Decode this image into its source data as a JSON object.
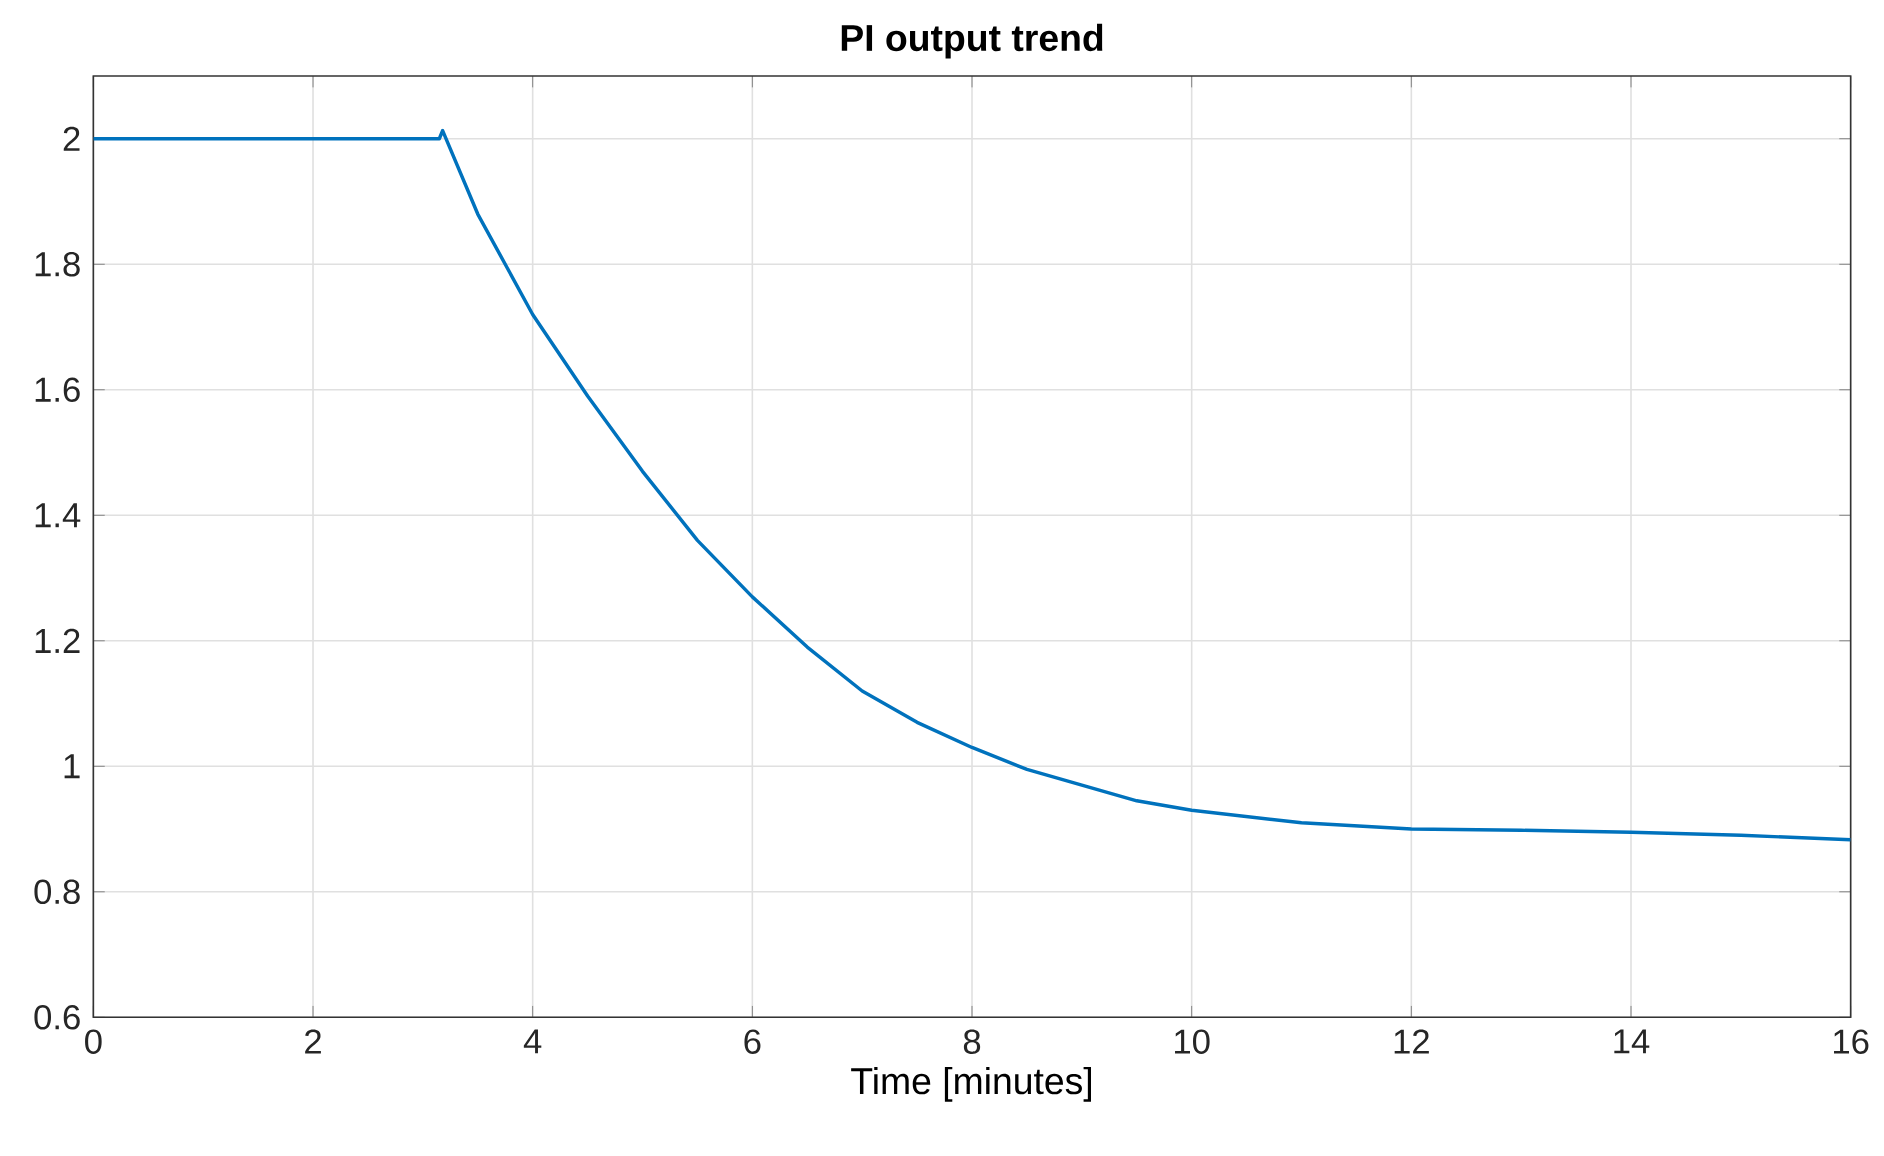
{
  "chart_data": {
    "type": "line",
    "title": "PI output trend",
    "xlabel": "Time [minutes]",
    "x": [
      0,
      1,
      2,
      3,
      3.15,
      3.18,
      3.5,
      4,
      4.5,
      5,
      5.5,
      6,
      6.5,
      7,
      7.5,
      8,
      8.5,
      9,
      9.5,
      10,
      11,
      12,
      13,
      14,
      15,
      16
    ],
    "series": [
      {
        "color": "#0072bd",
        "values": [
          2,
          2,
          2,
          2,
          2,
          2.013,
          1.88,
          1.72,
          1.59,
          1.47,
          1.36,
          1.27,
          1.19,
          1.12,
          1.07,
          1.03,
          0.995,
          0.97,
          0.945,
          0.93,
          0.91,
          0.9,
          0.898,
          0.895,
          0.89,
          0.883
        ]
      }
    ],
    "xlim": [
      0,
      16
    ],
    "ylim": [
      0.6,
      2.1
    ],
    "xticks": [
      0,
      2,
      4,
      6,
      8,
      10,
      12,
      14,
      16
    ],
    "yticks": [
      0.6,
      0.8,
      1,
      1.2,
      1.4,
      1.6,
      1.8,
      2
    ],
    "grid": true,
    "marker": "none",
    "line_style": "solid"
  }
}
